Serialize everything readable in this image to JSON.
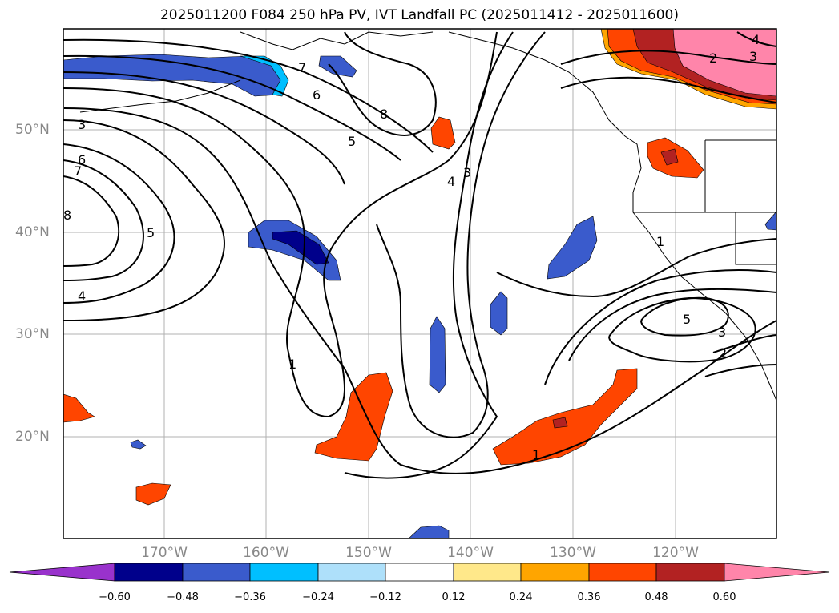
{
  "title": "2025011200 F084 250 hPa PV, IVT Landfall PC (2025011412 - 2025011600)",
  "lat_labels": [
    "50°N",
    "40°N",
    "30°N",
    "20°N"
  ],
  "lon_labels": [
    "170°W",
    "160°W",
    "150°W",
    "140°W",
    "130°W",
    "120°W"
  ],
  "colorbar": {
    "ticks": [
      "−0.60",
      "−0.48",
      "−0.36",
      "−0.24",
      "−0.12",
      "0.12",
      "0.24",
      "0.36",
      "0.48",
      "0.60"
    ],
    "colors": [
      "#9932cc",
      "#00008b",
      "#3a5bcc",
      "#00bfff",
      "#aee0fa",
      "#ffffff",
      "#ffe88a",
      "#ffa500",
      "#ff4500",
      "#b22222",
      "#ff85aa"
    ]
  },
  "contour_labels": [
    "3",
    "6",
    "7",
    "8",
    "5",
    "4",
    "7",
    "6",
    "5",
    "8",
    "4",
    "3",
    "1",
    "1",
    "1",
    "5",
    "3",
    "2",
    "4",
    "2",
    "3"
  ]
}
